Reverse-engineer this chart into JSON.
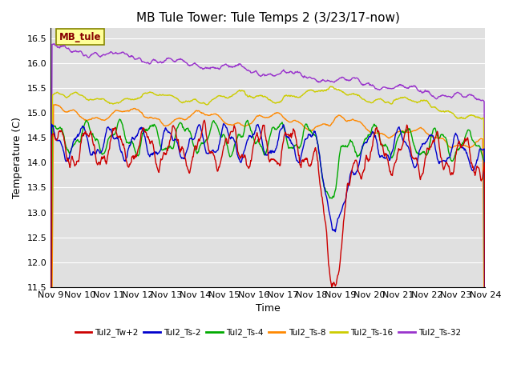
{
  "title": "MB Tule Tower: Tule Temps 2 (3/23/17-now)",
  "xlabel": "Time",
  "ylabel": "Temperature (C)",
  "ylim": [
    11.5,
    16.7
  ],
  "yticks": [
    11.5,
    12.0,
    12.5,
    13.0,
    13.5,
    14.0,
    14.5,
    15.0,
    15.5,
    16.0,
    16.5
  ],
  "xtick_labels": [
    "Nov 9",
    "Nov 10",
    "Nov 11",
    "Nov 12",
    "Nov 13",
    "Nov 14",
    "Nov 15",
    "Nov 16",
    "Nov 17",
    "Nov 18",
    "Nov 19",
    "Nov 20",
    "Nov 21",
    "Nov 22",
    "Nov 23",
    "Nov 24"
  ],
  "background_color": "#ffffff",
  "plot_bg_color": "#e0e0e0",
  "series_colors": {
    "Tul2_Tw+2": "#cc0000",
    "Tul2_Ts-2": "#0000cc",
    "Tul2_Ts-4": "#00aa00",
    "Tul2_Ts-8": "#ff8800",
    "Tul2_Ts-16": "#cccc00",
    "Tul2_Ts-32": "#9933cc"
  },
  "grid_color": "#ffffff",
  "title_fontsize": 11,
  "axis_fontsize": 9,
  "tick_fontsize": 8,
  "legend_box_text": "MB_tule"
}
